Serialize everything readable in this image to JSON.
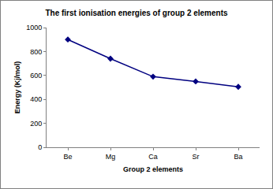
{
  "chart_data": {
    "type": "line",
    "title": "The first ionisation energies of group 2 elements",
    "xlabel": "Group 2 elements",
    "ylabel": "Energy (Kj/mol)",
    "categories": [
      "Be",
      "Mg",
      "Ca",
      "Sr",
      "Ba"
    ],
    "values": [
      900,
      740,
      590,
      550,
      505
    ],
    "color": "#000080",
    "marker": "diamond",
    "line_style": "solid",
    "ylim": [
      0,
      1000
    ],
    "yticks": [
      0,
      200,
      400,
      600,
      800,
      1000
    ],
    "grid": false
  }
}
